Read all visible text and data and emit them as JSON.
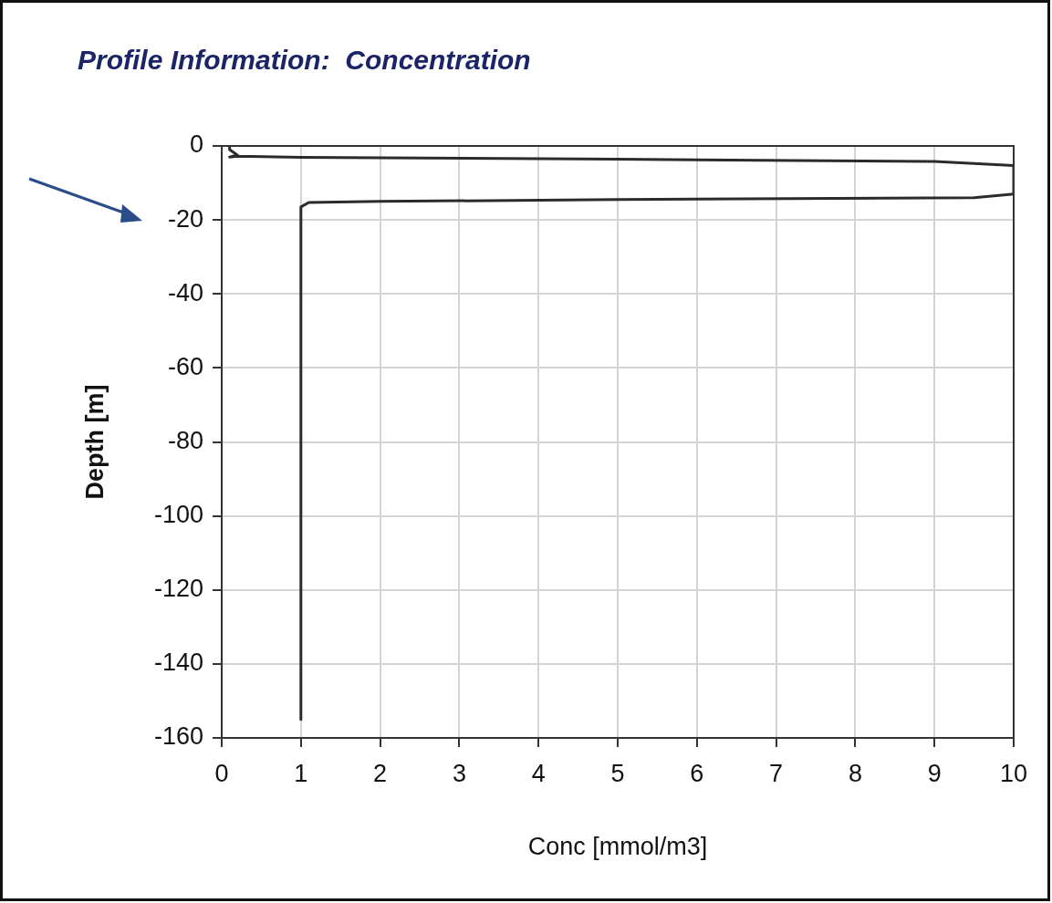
{
  "chart_data": {
    "type": "line",
    "title": "Profile Information:  Concentration",
    "xlabel": "Conc [mmol/m3]",
    "ylabel": "Depth [m]",
    "series": [
      {
        "color": "#2b2b2b",
        "x": [
          0.1,
          0.1,
          0.2,
          0.1,
          0.2,
          1,
          2,
          5,
          9,
          10,
          10,
          9.5,
          5,
          2,
          1.1,
          1,
          1
        ],
        "values": [
          0,
          -1,
          -2.5,
          -3,
          -2.8,
          -3.1,
          -3.2,
          -3.6,
          -4.2,
          -5.3,
          -13,
          -14,
          -14.5,
          -15,
          -15.3,
          -16.5,
          -155
        ]
      }
    ],
    "xlim": [
      0,
      10
    ],
    "xticks": [
      0,
      1,
      2,
      3,
      4,
      5,
      6,
      7,
      8,
      9,
      10
    ],
    "ylim": [
      -160,
      0
    ],
    "yticks": [
      0,
      -20,
      -40,
      -60,
      -80,
      -100,
      -120,
      -140,
      -160
    ],
    "grid": true,
    "legend": false,
    "marker": "none",
    "line_style": "solid"
  }
}
